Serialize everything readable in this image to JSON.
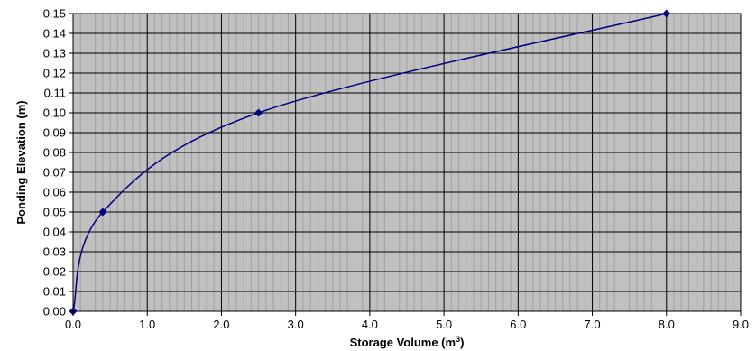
{
  "chart_data": {
    "type": "line",
    "title": "",
    "xlabel_main": "Storage Volume (m",
    "xlabel_sup": "3",
    "xlabel_end": ")",
    "ylabel": "Ponding Elevation (m)",
    "xlim": [
      0,
      9
    ],
    "ylim": [
      0,
      0.15
    ],
    "x_ticks": [
      0,
      1,
      2,
      3,
      4,
      5,
      6,
      7,
      8,
      9
    ],
    "x_tick_labels": [
      "0.0",
      "1.0",
      "2.0",
      "3.0",
      "4.0",
      "5.0",
      "6.0",
      "7.0",
      "8.0",
      "9.0"
    ],
    "y_ticks": [
      0,
      0.01,
      0.02,
      0.03,
      0.04,
      0.05,
      0.06,
      0.07,
      0.08,
      0.09,
      0.1,
      0.11,
      0.12,
      0.13,
      0.14,
      0.15
    ],
    "y_tick_labels": [
      "0.00",
      "0.01",
      "0.02",
      "0.03",
      "0.04",
      "0.05",
      "0.06",
      "0.07",
      "0.08",
      "0.09",
      "0.10",
      "0.11",
      "0.12",
      "0.13",
      "0.14",
      "0.15"
    ],
    "grid": true,
    "series": [
      {
        "x": [
          0,
          0.4,
          2.5,
          8.0
        ],
        "y": [
          0,
          0.05,
          0.1,
          0.15
        ]
      }
    ],
    "colors": {
      "plot_background": "#c0c0c0",
      "major_grid": "#000000",
      "minor_grid": "#a0a0a0",
      "line": "#000080",
      "marker": "#000080"
    }
  }
}
